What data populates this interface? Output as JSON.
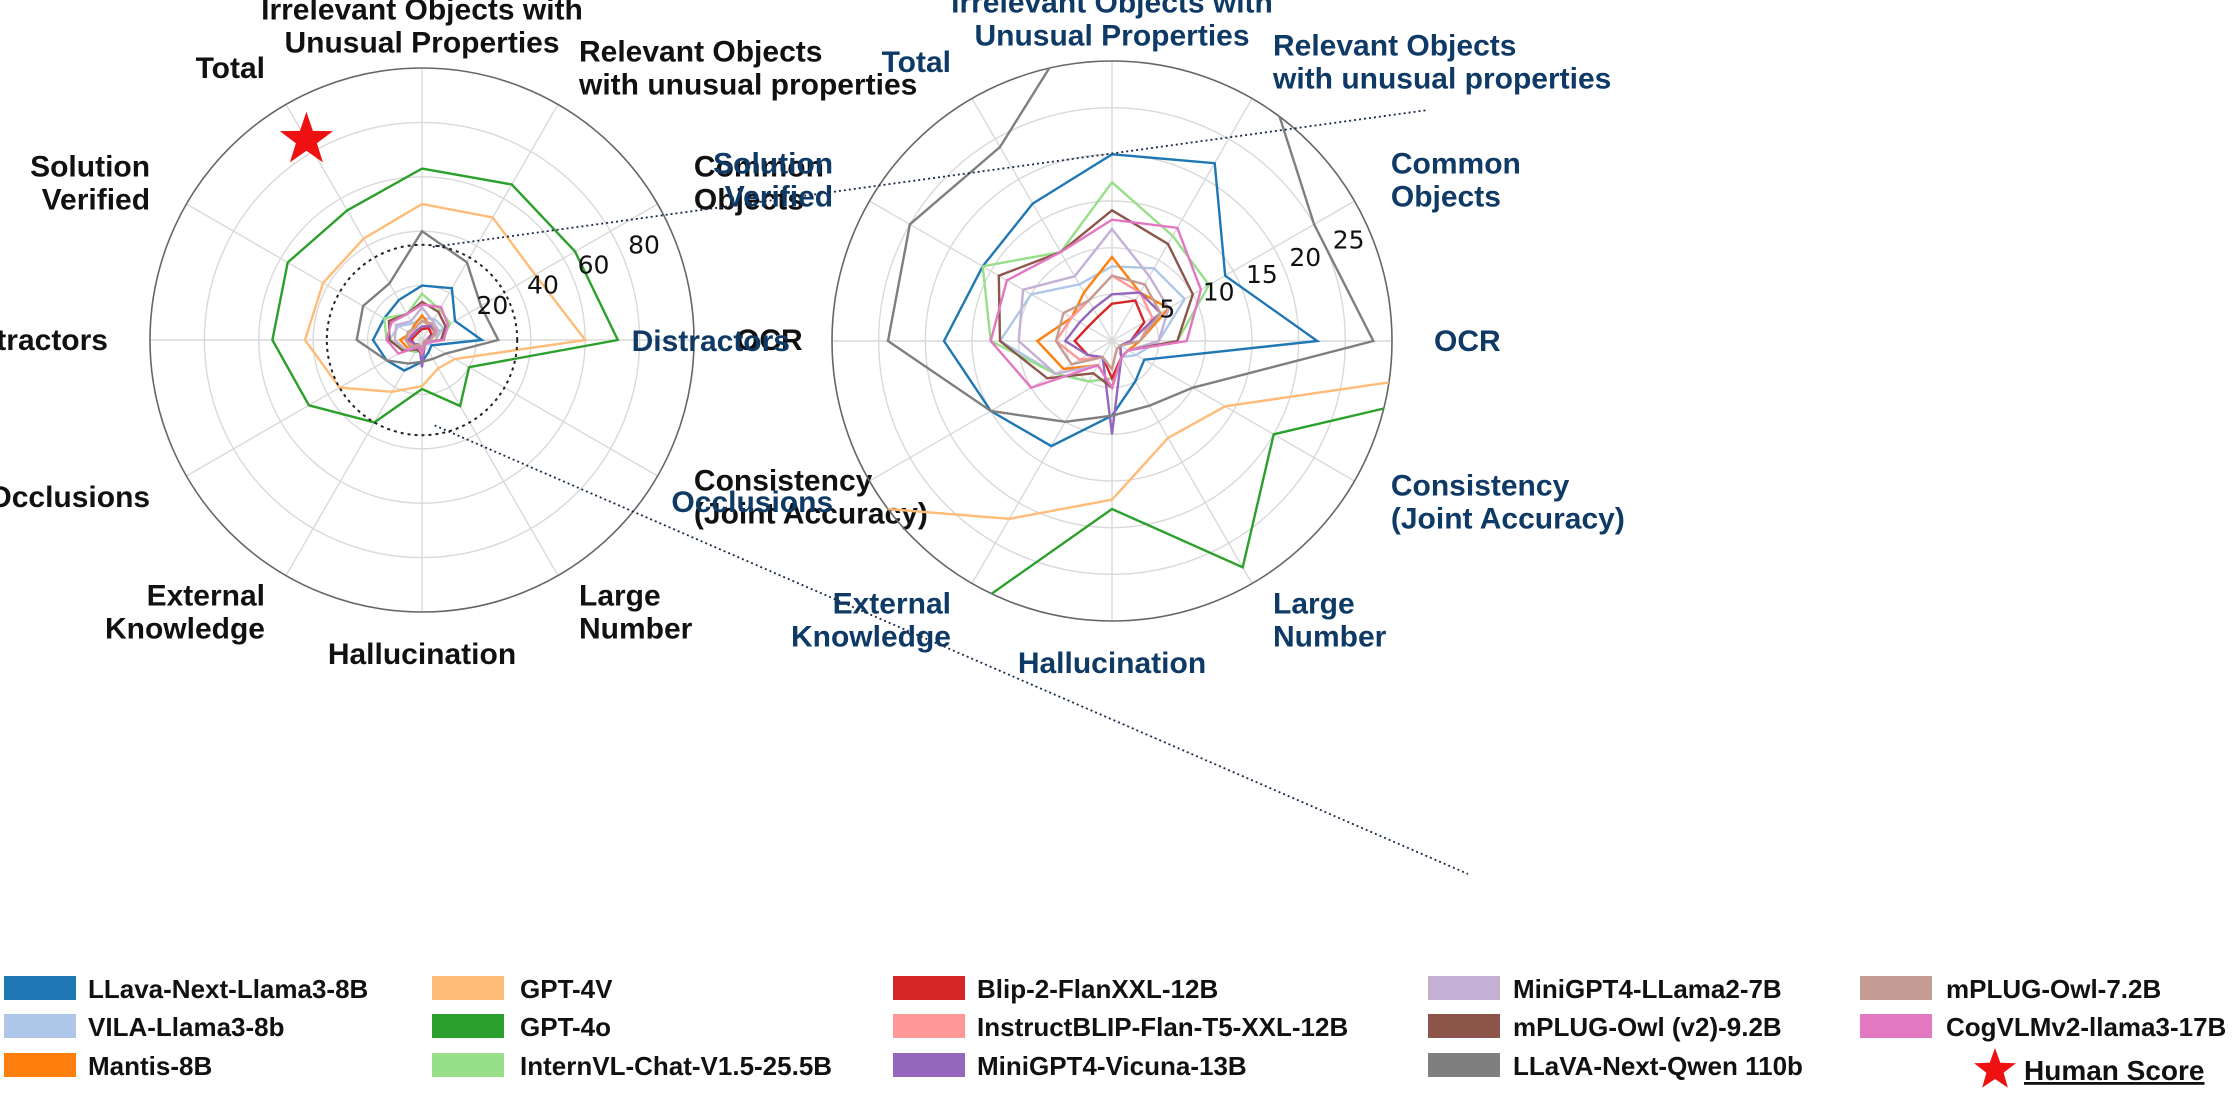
{
  "chart_data": {
    "type": "radar",
    "axes": [
      "Irrelevant Objects with Unusual Properties",
      "Relevant Objects with unusual properties",
      "Common Objects",
      "OCR",
      "Consistency (Joint Accuracy)",
      "Large Number",
      "Hallucination",
      "External Knowledge",
      "Occlusions",
      "Distractors",
      "Solution Verified",
      "Total"
    ],
    "left_axis_labels": [
      [
        "Irrelevant Objects with",
        "Unusual Properties"
      ],
      [
        "Relevant Objects",
        "with unusual properties"
      ],
      [
        "Common",
        "Objects"
      ],
      [
        "OCR"
      ],
      [
        "Consistency",
        "(Joint Accuracy)"
      ],
      [
        "Large",
        "Number"
      ],
      [
        "Hallucination"
      ],
      [
        "External",
        "Knowledge"
      ],
      [
        "Occlusions"
      ],
      [
        "Distractors"
      ],
      [
        "Solution",
        "Verified"
      ],
      [
        "Total"
      ]
    ],
    "right_axis_labels": [
      [
        "Irrelevant Objects with",
        "Unusual Properties"
      ],
      [
        "Relevant Objects",
        "with unusual properties"
      ],
      [
        "Common",
        "Objects"
      ],
      [
        "OCR"
      ],
      [
        "Consistency",
        "(Joint Accuracy)"
      ],
      [
        "Large",
        "Number"
      ],
      [
        "Hallucination"
      ],
      [
        "External",
        "Knowledge"
      ],
      [
        "Occlusions"
      ],
      [
        "Distractors"
      ],
      [
        "Solution",
        "Verified"
      ],
      [
        "Total"
      ]
    ],
    "left_chart": {
      "rmax": 100,
      "ticks": [
        20,
        40,
        60,
        80
      ],
      "zoom_circle": 35
    },
    "right_chart": {
      "rmax": 30,
      "ticks": [
        5,
        10,
        15,
        20,
        25
      ]
    },
    "series": [
      {
        "name": "LLava-Next-Llama3-8B",
        "color": "#1f77b4",
        "values": [
          20,
          22,
          14,
          22,
          4,
          5,
          8,
          13,
          15,
          18,
          16,
          17
        ]
      },
      {
        "name": "VILA-Llama3-8b",
        "color": "#aec7e8",
        "values": [
          8,
          9,
          9,
          5,
          3,
          2,
          4,
          5,
          7,
          12,
          10,
          7
        ]
      },
      {
        "name": "Mantis-8B",
        "color": "#ff7f0e",
        "values": [
          9,
          6,
          7,
          3,
          2,
          2,
          5,
          3,
          6,
          8,
          5,
          6
        ]
      },
      {
        "name": "GPT-4V",
        "color": "#ffbb78",
        "values": [
          50,
          52,
          48,
          60,
          14,
          12,
          17,
          22,
          35,
          43,
          42,
          43
        ]
      },
      {
        "name": "GPT-4o",
        "color": "#2ca02c",
        "values": [
          63,
          66,
          65,
          72,
          20,
          28,
          18,
          35,
          48,
          55,
          57,
          55
        ]
      },
      {
        "name": "InternVL-Chat-V1.5-25.5B",
        "color": "#98df8a",
        "values": [
          17,
          13,
          12,
          7,
          2,
          2,
          4,
          5,
          7,
          13,
          16,
          11
        ]
      },
      {
        "name": "Blip-2-FlanXXL-12B",
        "color": "#d62728",
        "values": [
          4,
          5,
          4,
          2,
          1,
          2,
          4,
          2,
          3,
          4,
          3,
          3
        ]
      },
      {
        "name": "InstructBLIP-Flan-T5-XXL-12B",
        "color": "#ff9896",
        "values": [
          7,
          6,
          5,
          3,
          1,
          1,
          3,
          2,
          4,
          6,
          5,
          5
        ]
      },
      {
        "name": "MiniGPT4-Vicuna-13B",
        "color": "#9467bd",
        "values": [
          5,
          6,
          6,
          2,
          1,
          2,
          10,
          2,
          3,
          5,
          4,
          4
        ]
      },
      {
        "name": "MiniGPT4-LLama2-7B",
        "color": "#c5b0d5",
        "values": [
          12,
          8,
          7,
          5,
          2,
          2,
          5,
          3,
          7,
          10,
          11,
          8
        ]
      },
      {
        "name": "mPLUG-Owl (v2)-9.2B",
        "color": "#8c564b",
        "values": [
          14,
          12,
          10,
          7,
          2,
          2,
          5,
          4,
          8,
          12,
          14,
          11
        ]
      },
      {
        "name": "LLaVA-Next-Qwen 110b",
        "color": "#7f7f7f",
        "values": [
          40,
          33,
          25,
          28,
          10,
          8,
          8,
          10,
          15,
          24,
          25,
          24
        ]
      },
      {
        "name": "mPLUG-Owl-7.2B",
        "color": "#c49c94",
        "values": [
          7,
          7,
          6,
          3,
          1,
          1,
          3,
          2,
          5,
          6,
          6,
          5
        ]
      },
      {
        "name": "CogVLMv2-llama3-17B",
        "color": "#e377c2",
        "values": [
          13,
          14,
          11,
          8,
          2,
          2,
          5,
          3,
          10,
          13,
          13,
          11
        ]
      }
    ],
    "human_score": {
      "label": "Human Score",
      "axis": "Total",
      "value": 85,
      "color": "#ee1111"
    },
    "grid": true
  }
}
